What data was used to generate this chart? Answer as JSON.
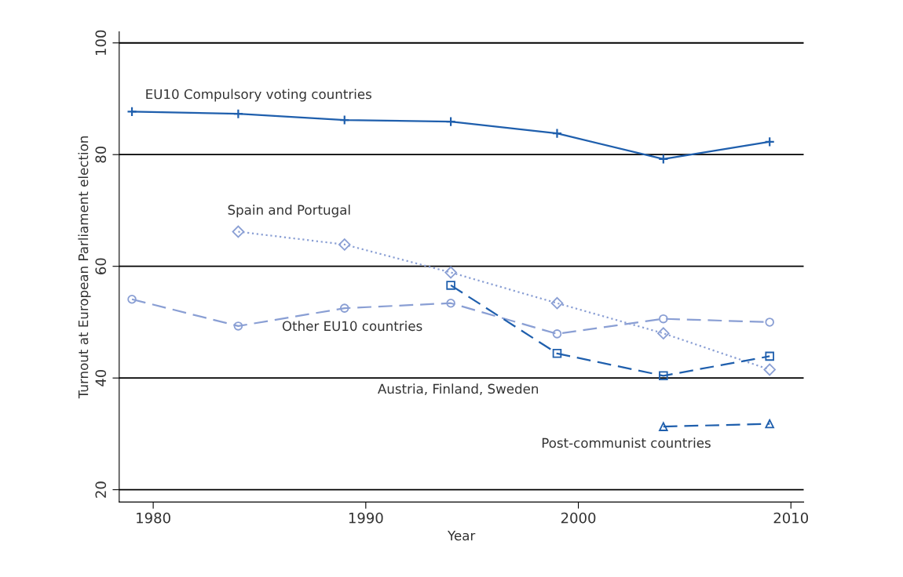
{
  "chart_data": {
    "type": "line",
    "xlabel": "Year",
    "ylabel": "Turnout at European Parliament election",
    "xlim": [
      1978.4,
      2010.6
    ],
    "xticks": [
      1980,
      1990,
      2000,
      2010
    ],
    "ylim": [
      17.8,
      102
    ],
    "yticks": [
      20,
      40,
      60,
      80,
      100
    ],
    "grid": "y",
    "series": [
      {
        "name": "EU10 Compulsory voting countries",
        "color": "#1f5fad",
        "marker": "cross",
        "line_style": "solid",
        "x": [
          1979,
          1984,
          1989,
          1994,
          1999,
          2004,
          2009
        ],
        "values": [
          87.7,
          87.3,
          86.2,
          85.9,
          83.8,
          79.2,
          82.3
        ]
      },
      {
        "name": "Spain and Portugal",
        "color": "#8a9fd4",
        "marker": "diamond",
        "line_style": "dotted",
        "x": [
          1984,
          1989,
          1994,
          1999,
          2004,
          2009
        ],
        "values": [
          66.2,
          63.9,
          58.9,
          53.4,
          48.0,
          41.5
        ]
      },
      {
        "name": "Other EU10 countries",
        "color": "#8a9fd4",
        "marker": "circle",
        "line_style": "dashed",
        "x": [
          1979,
          1984,
          1989,
          1994,
          1999,
          2004,
          2009
        ],
        "values": [
          54.1,
          49.3,
          52.5,
          53.4,
          47.9,
          50.6,
          50.0
        ]
      },
      {
        "name": "Austria, Finland, Sweden",
        "color": "#1f5fad",
        "marker": "square",
        "line_style": "dashed",
        "x": [
          1994,
          1999,
          2004,
          2009
        ],
        "values": [
          56.6,
          44.4,
          40.4,
          43.9
        ]
      },
      {
        "name": "Post-communist countries",
        "color": "#1f5fad",
        "marker": "triangle",
        "line_style": "dashed",
        "x": [
          2004,
          2009
        ],
        "values": [
          31.3,
          31.8
        ]
      }
    ]
  }
}
